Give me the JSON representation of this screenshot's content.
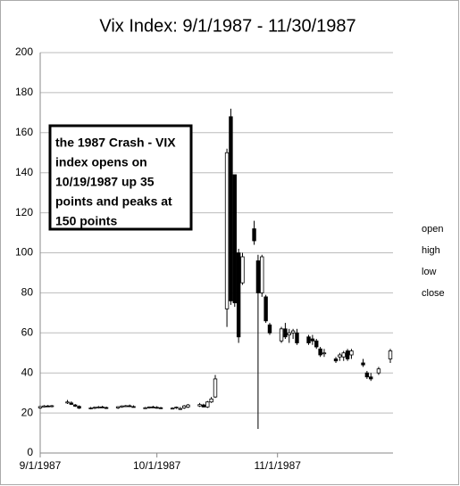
{
  "chart_data": {
    "type": "candlestick",
    "title": "Vix Index: 9/1/1987  - 11/30/1987",
    "annotation": [
      "the 1987 Crash - VIX",
      "index opens on",
      "10/19/1987 up 35",
      "points and peaks at",
      "150 points"
    ],
    "x": [
      "1987-09-01",
      "1987-09-02",
      "1987-09-03",
      "1987-09-04",
      "1987-09-08",
      "1987-09-09",
      "1987-09-10",
      "1987-09-11",
      "1987-09-14",
      "1987-09-15",
      "1987-09-16",
      "1987-09-17",
      "1987-09-18",
      "1987-09-21",
      "1987-09-22",
      "1987-09-23",
      "1987-09-24",
      "1987-09-25",
      "1987-09-28",
      "1987-09-29",
      "1987-09-30",
      "1987-10-01",
      "1987-10-02",
      "1987-10-05",
      "1987-10-06",
      "1987-10-07",
      "1987-10-08",
      "1987-10-09",
      "1987-10-12",
      "1987-10-13",
      "1987-10-14",
      "1987-10-15",
      "1987-10-16",
      "1987-10-19",
      "1987-10-20",
      "1987-10-21",
      "1987-10-22",
      "1987-10-23",
      "1987-10-26",
      "1987-10-27",
      "1987-10-28",
      "1987-10-29",
      "1987-10-30",
      "1987-11-02",
      "1987-11-03",
      "1987-11-04",
      "1987-11-05",
      "1987-11-06",
      "1987-11-09",
      "1987-11-10",
      "1987-11-11",
      "1987-11-12",
      "1987-11-13",
      "1987-11-16",
      "1987-11-17",
      "1987-11-18",
      "1987-11-19",
      "1987-11-20",
      "1987-11-23",
      "1987-11-24",
      "1987-11-25",
      "1987-11-27",
      "1987-11-30"
    ],
    "series": [
      {
        "name": "open",
        "values": [
          22.5,
          23,
          23.5,
          23.2,
          25,
          25,
          24,
          23.3,
          22.3,
          22.5,
          22.8,
          23,
          22.7,
          22.5,
          23,
          23.4,
          23.6,
          23.2,
          22.5,
          22.6,
          23,
          22.8,
          22.6,
          22.3,
          22.5,
          22,
          22.5,
          23,
          23.5,
          24,
          23,
          25.5,
          28,
          72,
          168,
          139,
          100,
          85,
          112,
          96,
          80,
          78,
          64,
          56,
          62,
          59,
          60,
          60,
          58,
          57,
          56,
          52,
          50,
          47,
          48,
          48,
          51,
          49,
          45,
          40,
          38,
          40,
          47
        ]
      },
      {
        "name": "high",
        "values": [
          23.5,
          24,
          24,
          24,
          26.5,
          25.8,
          24.5,
          23.8,
          23,
          23.2,
          23.5,
          23.6,
          23.2,
          23.4,
          23.8,
          24,
          24.2,
          23.8,
          23,
          23.3,
          23.6,
          23.4,
          23,
          22.8,
          23.2,
          23,
          24,
          24.5,
          25,
          24.6,
          26,
          28,
          39,
          152,
          172,
          139,
          102,
          100,
          116,
          99,
          99,
          79,
          65,
          63,
          65,
          62,
          62,
          62,
          59,
          59,
          57,
          53,
          52,
          48,
          50,
          51,
          52,
          52,
          47,
          41,
          40,
          43,
          52
        ]
      },
      {
        "name": "low",
        "values": [
          22,
          22.8,
          23,
          22.8,
          24.5,
          24,
          23,
          22,
          21.8,
          22,
          22.3,
          22.5,
          22,
          22,
          22.6,
          23,
          23,
          22.8,
          22,
          22.2,
          22.5,
          22.2,
          22,
          21.8,
          22,
          21.5,
          22,
          22.5,
          23,
          22.8,
          22.5,
          25,
          27.5,
          63,
          74,
          73,
          55,
          84,
          104,
          12,
          78,
          65,
          59,
          55,
          57,
          55,
          57,
          54,
          54,
          54,
          52,
          48,
          48,
          45,
          46,
          46,
          46,
          47,
          43,
          37,
          36,
          39,
          45
        ]
      },
      {
        "name": "close",
        "values": [
          23.2,
          23.5,
          23.3,
          23.6,
          25.5,
          24.3,
          23.4,
          22.4,
          22.5,
          22.8,
          23,
          22.7,
          22.3,
          23.1,
          23.5,
          23.6,
          23.2,
          23,
          22.6,
          23,
          22.8,
          22.6,
          22.3,
          22.4,
          22.9,
          22.2,
          23.5,
          24,
          24.2,
          23,
          25.5,
          27,
          37,
          150,
          76,
          75,
          58,
          98,
          106,
          80,
          98,
          66,
          60,
          62,
          58,
          60,
          61,
          55,
          55,
          56,
          53,
          49,
          50,
          46,
          49,
          50,
          47,
          51,
          44,
          38,
          37,
          42,
          51
        ]
      }
    ],
    "xlim": [
      "1987-09-01",
      "1987-11-30"
    ],
    "xticks": [
      {
        "value": "1987-09-01",
        "label": "9/1/1987"
      },
      {
        "value": "1987-10-01",
        "label": "10/1/1987"
      },
      {
        "value": "1987-11-01",
        "label": "11/1/1987"
      }
    ],
    "ylim": [
      0,
      200
    ],
    "yticks": [
      0,
      20,
      40,
      60,
      80,
      100,
      120,
      140,
      160,
      180,
      200
    ],
    "grid": true,
    "legend": "right"
  }
}
